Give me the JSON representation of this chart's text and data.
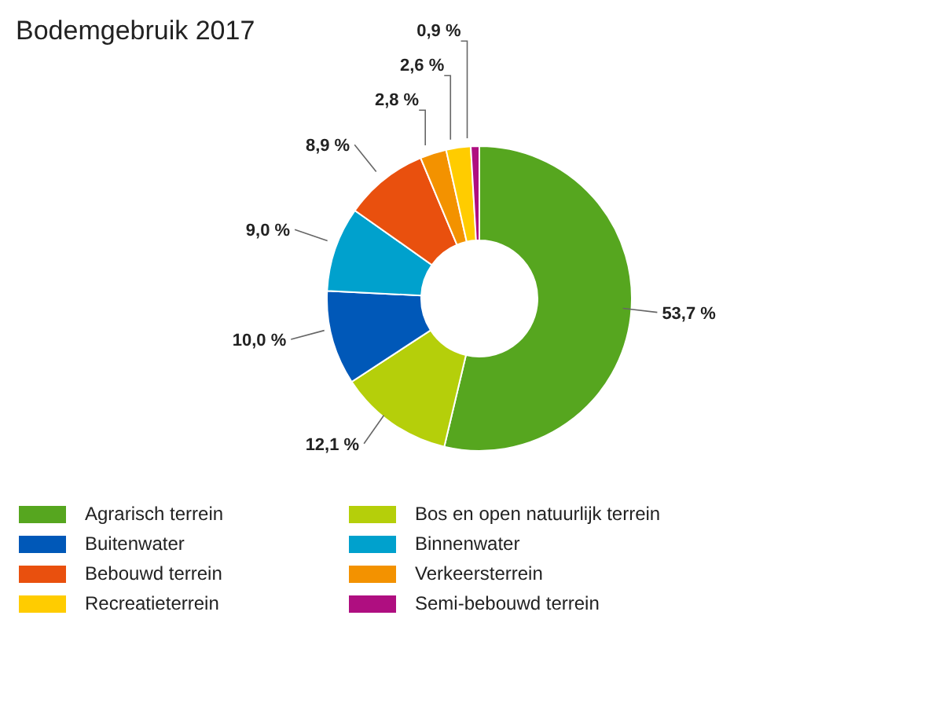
{
  "chart_data": {
    "type": "donut",
    "title": "Bodemgebruik 2017",
    "categories": [
      "Agrarisch terrein",
      "Bos en open natuurlijk terrein",
      "Buitenwater",
      "Binnenwater",
      "Bebouwd terrein",
      "Verkeersterrein",
      "Recreatieterrein",
      "Semi-bebouwd terrein"
    ],
    "values": [
      53.7,
      12.1,
      10.0,
      9.0,
      8.9,
      2.8,
      2.6,
      0.9
    ],
    "colors": [
      "#56a61f",
      "#b5cf0a",
      "#0058b8",
      "#00a1cd",
      "#e9500e",
      "#f39200",
      "#ffcc00",
      "#af0e80"
    ],
    "value_labels": [
      "53,7 %",
      "12,1 %",
      "10,0 %",
      "9,0 %",
      "8,9 %",
      "2,8 %",
      "2,6 %",
      "0,9 %"
    ],
    "legend": "bottom"
  }
}
